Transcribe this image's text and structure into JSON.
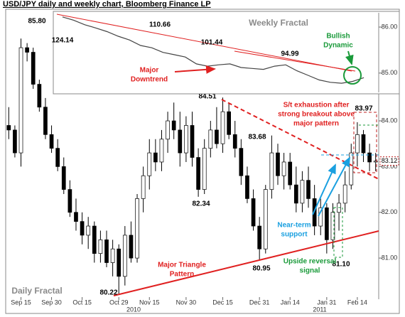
{
  "chart_data": [
    {
      "type": "candlestick",
      "title": "USD/JPY daily and weekly chart, Bloomberg Finance LP",
      "subtitle": "Daily Fractal",
      "categories": [
        null,
        null,
        "Sep 15",
        null,
        null,
        null,
        null,
        "Sep 30",
        null,
        null,
        null,
        null,
        "Oct 15",
        null,
        null,
        null,
        null,
        null,
        "Oct 29",
        null,
        null,
        null,
        null,
        "Nov 15",
        null,
        null,
        null,
        null,
        null,
        "Nov 30",
        null,
        null,
        null,
        null,
        null,
        "Dec 15",
        null,
        null,
        null,
        null,
        null,
        "Dec 31",
        null,
        null,
        null,
        null,
        "Jan 14",
        null,
        null,
        null,
        null,
        null,
        "Jan 31",
        null,
        null,
        null,
        null,
        "Feb 14",
        null,
        null,
        null
      ],
      "x_group_labels": [
        "2010",
        "2011"
      ],
      "open": [
        83.9,
        83.8,
        83.3,
        85.6,
        85.5,
        84.8,
        84.3,
        83.7,
        83.4,
        83.0,
        82.5,
        82.0,
        81.8,
        81.5,
        81.7,
        81.1,
        81.4,
        80.9,
        81.2,
        80.6,
        81.5,
        81.0,
        82.3,
        82.8,
        83.3,
        83.1,
        83.6,
        84.0,
        83.8,
        83.3,
        83.9,
        83.2,
        82.5,
        83.4,
        83.8,
        83.5,
        84.2,
        83.7,
        83.4,
        82.8,
        82.3,
        81.7,
        81.2,
        82.5,
        83.3,
        82.8,
        83.1,
        82.6,
        82.2,
        82.7,
        82.3,
        81.7,
        82.1,
        81.4,
        82.0,
        82.2,
        82.6,
        83.3,
        83.7,
        83.3,
        83.1
      ],
      "high": [
        84.3,
        83.9,
        85.8,
        85.7,
        85.6,
        84.9,
        84.5,
        83.9,
        83.6,
        83.2,
        82.7,
        82.3,
        82.0,
        81.9,
        81.8,
        81.6,
        81.6,
        81.4,
        81.3,
        81.7,
        81.8,
        82.4,
        83.0,
        83.6,
        83.6,
        83.8,
        84.2,
        84.4,
        84.2,
        84.1,
        84.2,
        83.4,
        83.6,
        84.0,
        84.3,
        84.51,
        84.4,
        84.0,
        83.6,
        83.0,
        82.5,
        81.9,
        82.6,
        83.68,
        83.5,
        83.3,
        83.3,
        83.0,
        82.9,
        83.0,
        82.6,
        82.3,
        82.2,
        82.2,
        82.4,
        82.9,
        83.5,
        83.97,
        83.8,
        83.5,
        83.3
      ],
      "low": [
        83.6,
        83.2,
        83.0,
        85.3,
        84.7,
        84.2,
        83.6,
        83.3,
        82.9,
        82.4,
        81.9,
        81.6,
        81.3,
        81.2,
        80.9,
        80.9,
        80.8,
        80.6,
        80.22,
        80.4,
        80.9,
        80.9,
        82.0,
        82.5,
        82.9,
        82.9,
        83.3,
        83.6,
        83.0,
        83.1,
        83.0,
        82.34,
        82.4,
        83.2,
        83.4,
        83.3,
        83.6,
        83.2,
        82.6,
        82.2,
        81.6,
        80.95,
        81.1,
        82.3,
        82.6,
        82.5,
        82.5,
        82.0,
        82.0,
        82.1,
        81.5,
        81.5,
        81.1,
        81.2,
        81.6,
        82.0,
        82.5,
        83.0,
        83.1,
        82.9,
        82.9
      ],
      "close": [
        83.8,
        83.3,
        85.6,
        85.5,
        84.8,
        84.3,
        83.7,
        83.4,
        83.0,
        82.5,
        82.0,
        81.8,
        81.5,
        81.7,
        81.1,
        81.4,
        80.9,
        81.2,
        80.6,
        81.5,
        81.0,
        82.3,
        82.8,
        83.3,
        83.1,
        83.6,
        84.0,
        83.8,
        83.3,
        83.9,
        83.2,
        82.5,
        83.4,
        83.8,
        83.5,
        84.2,
        83.7,
        83.4,
        82.8,
        82.3,
        81.7,
        81.2,
        82.5,
        83.3,
        82.8,
        83.1,
        82.6,
        82.2,
        82.7,
        82.3,
        81.7,
        82.1,
        81.4,
        82.0,
        82.2,
        82.6,
        83.3,
        83.7,
        83.3,
        83.1,
        83.12
      ],
      "up_color": "#ffffff",
      "down_color": "#000000",
      "last_price": 83.12,
      "ylim": [
        80.1,
        86.4
      ],
      "yticks": [
        {
          "value": 81,
          "label": "81.00"
        },
        {
          "value": 82,
          "label": "82.00"
        },
        {
          "value": 83,
          "label": "83.00"
        },
        {
          "value": 84,
          "label": "84.00"
        }
      ],
      "price_labels": [
        "85.80",
        "84.51",
        "83.97",
        "83.68",
        "82.34",
        "80.95",
        "80.22",
        "81.10"
      ],
      "notes": [
        [
          "S/t exhaustion after",
          "strong breakout above",
          "major pattern"
        ],
        [
          "Major Triangle",
          "Pattern"
        ],
        [
          "Near-term",
          "support"
        ],
        [
          "Upside reversal",
          "signal"
        ]
      ]
    },
    {
      "type": "line",
      "subtitle": "Weekly Fractal",
      "categories": [
        null,
        null,
        null,
        null,
        null,
        null,
        null,
        null,
        null,
        null,
        null,
        null,
        null,
        null,
        null,
        null,
        null,
        null,
        null,
        null,
        null,
        null,
        null,
        null,
        null,
        null,
        null,
        null
      ],
      "values": [
        86.22,
        86.15,
        86.05,
        85.98,
        85.9,
        85.8,
        85.72,
        85.6,
        85.55,
        85.45,
        85.4,
        85.35,
        85.2,
        85.15,
        85.18,
        85.2,
        85.12,
        85.1,
        85.08,
        85.15,
        85.18,
        85.05,
        84.95,
        84.85,
        84.8,
        84.78,
        84.82,
        84.9
      ],
      "color": "#444444",
      "ylim": [
        84.58,
        86.31
      ],
      "yticks": [
        {
          "value": 85,
          "label": "85.00"
        },
        {
          "value": 86,
          "label": "86.00"
        }
      ],
      "price_labels": [
        "124.14",
        "110.66",
        "101.44",
        "94.99"
      ],
      "notes": [
        [
          "Major",
          "Downtrend"
        ],
        [
          "Bullish",
          "Dynamic"
        ]
      ]
    }
  ]
}
